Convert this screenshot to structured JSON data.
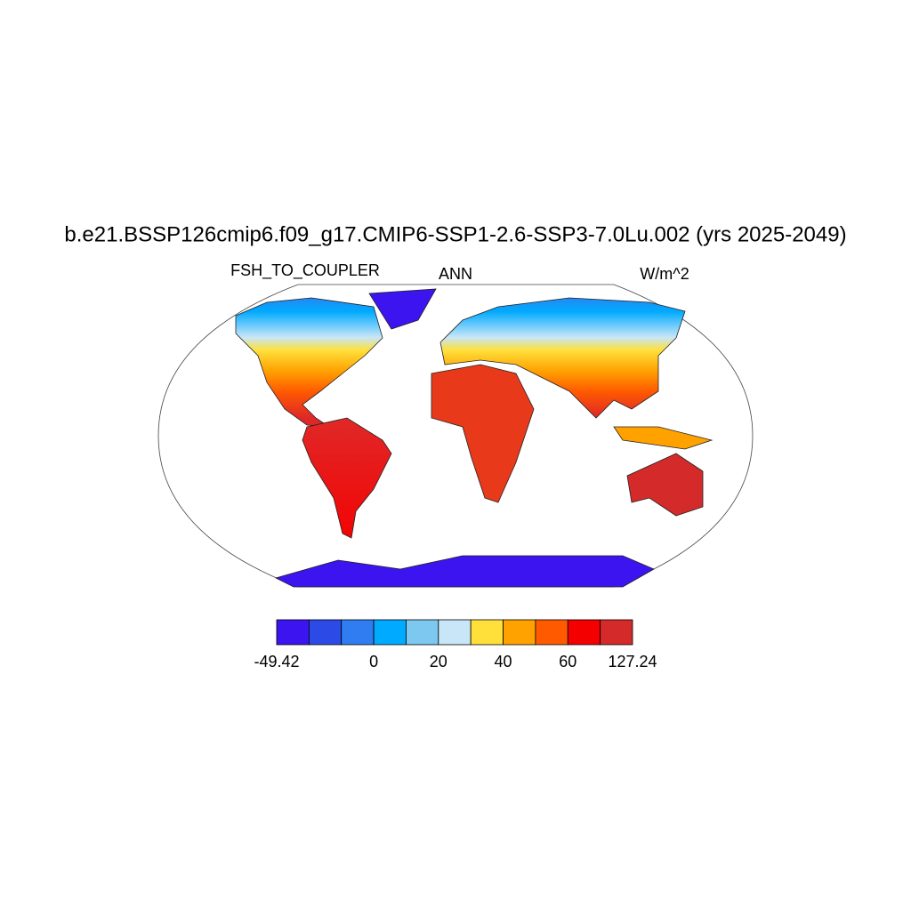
{
  "header": {
    "title": "b.e21.BSSP126cmip6.f09_g17.CMIP6-SSP1-2.6-SSP3-7.0Lu.002 (yrs 2025-2049)",
    "left_subtitle": "FSH_TO_COUPLER",
    "center_subtitle": "ANN",
    "right_subtitle": "W/m^2"
  },
  "colorbar": {
    "colors": [
      "#3c14f0",
      "#2b4ae6",
      "#2f7df0",
      "#00aaff",
      "#7cc8f0",
      "#c8e6f8",
      "#ffe03b",
      "#ffa200",
      "#ff5a00",
      "#f50000",
      "#d42a2a"
    ],
    "ticks": [
      -49.42,
      0,
      20,
      40,
      60,
      127.24
    ]
  }
}
